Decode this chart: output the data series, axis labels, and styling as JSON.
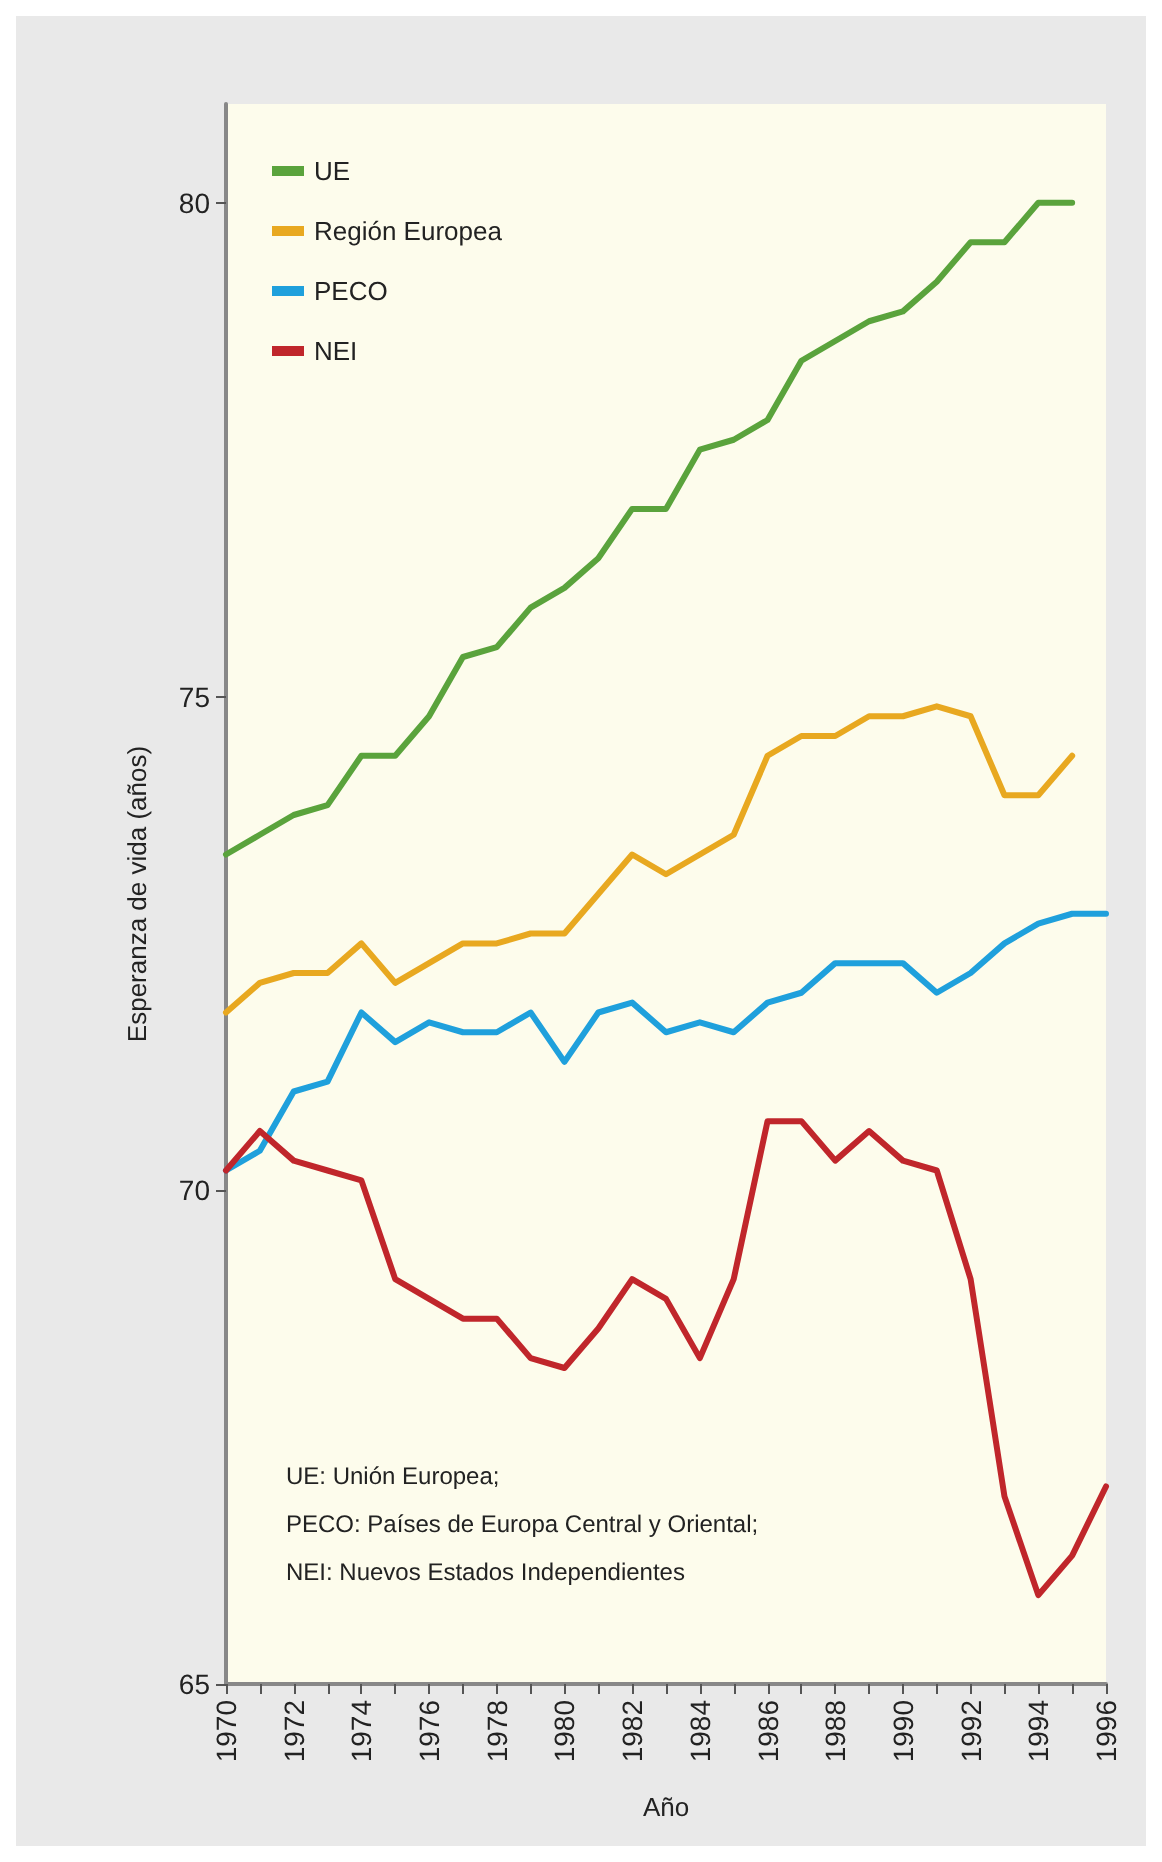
{
  "chart_data": {
    "type": "line",
    "xlabel": "Año",
    "ylabel": "Esperanza de vida (años)",
    "x": [
      1970,
      1971,
      1972,
      1973,
      1974,
      1975,
      1976,
      1977,
      1978,
      1979,
      1980,
      1981,
      1982,
      1983,
      1984,
      1985,
      1986,
      1987,
      1988,
      1989,
      1990,
      1991,
      1992,
      1993,
      1994,
      1995,
      1996
    ],
    "series": [
      {
        "name": "UE",
        "color": "#5aa33c",
        "values": [
          73.4,
          73.6,
          73.8,
          73.9,
          74.4,
          74.4,
          74.8,
          75.4,
          75.5,
          75.9,
          76.1,
          76.4,
          76.9,
          76.9,
          77.5,
          77.6,
          77.8,
          78.4,
          78.6,
          78.8,
          78.9,
          79.2,
          79.6,
          79.6,
          80.0,
          80.0,
          null
        ]
      },
      {
        "name": "Región Europea",
        "color": "#e8a820",
        "values": [
          71.8,
          72.1,
          72.2,
          72.2,
          72.5,
          72.1,
          72.3,
          72.5,
          72.5,
          72.6,
          72.6,
          73.0,
          73.4,
          73.2,
          73.4,
          73.6,
          74.4,
          74.6,
          74.6,
          74.8,
          74.8,
          74.9,
          74.8,
          74.0,
          74.0,
          74.4,
          null
        ]
      },
      {
        "name": "PECO",
        "color": "#1fa0dc",
        "values": [
          70.2,
          70.4,
          71.0,
          71.1,
          71.8,
          71.5,
          71.7,
          71.6,
          71.6,
          71.8,
          71.3,
          71.8,
          71.9,
          71.6,
          71.7,
          71.6,
          71.9,
          72.0,
          72.3,
          72.3,
          72.3,
          72.0,
          72.2,
          72.5,
          72.7,
          72.8,
          72.8
        ]
      },
      {
        "name": "NEI",
        "color": "#c0262b",
        "values": [
          70.2,
          70.6,
          70.3,
          70.2,
          70.1,
          69.1,
          68.9,
          68.7,
          68.7,
          68.3,
          68.2,
          68.6,
          69.1,
          68.9,
          68.3,
          69.1,
          70.7,
          70.7,
          70.3,
          70.6,
          70.3,
          70.2,
          69.1,
          66.9,
          65.9,
          66.3,
          67.0
        ]
      }
    ],
    "xlim": [
      1970,
      1996
    ],
    "xticks": [
      1970,
      {
        "value": 1971,
        "label": null
      },
      1972,
      {
        "value": 1973,
        "label": null
      },
      1974,
      {
        "value": 1975,
        "label": null
      },
      1976,
      {
        "value": 1977,
        "label": null
      },
      1978,
      {
        "value": 1979,
        "label": null
      },
      1980,
      {
        "value": 1981,
        "label": null
      },
      1982,
      {
        "value": 1983,
        "label": null
      },
      1984,
      {
        "value": 1985,
        "label": null
      },
      1986,
      {
        "value": 1987,
        "label": null
      },
      1988,
      {
        "value": 1989,
        "label": null
      },
      1990,
      {
        "value": 1991,
        "label": null
      },
      1992,
      {
        "value": 1993,
        "label": null
      },
      1994,
      {
        "value": 1995,
        "label": null
      },
      1996
    ],
    "ylim": [
      65,
      81
    ],
    "yticks": [
      65,
      70,
      75,
      80
    ],
    "grid": false,
    "legend": "top left",
    "marker": "none",
    "line_style": "solid",
    "annotations": [
      "UE: Unión Europea;",
      "PECO: Países de Europa Central y Oriental;",
      "NEI: Nuevos Estados Independientes"
    ]
  }
}
